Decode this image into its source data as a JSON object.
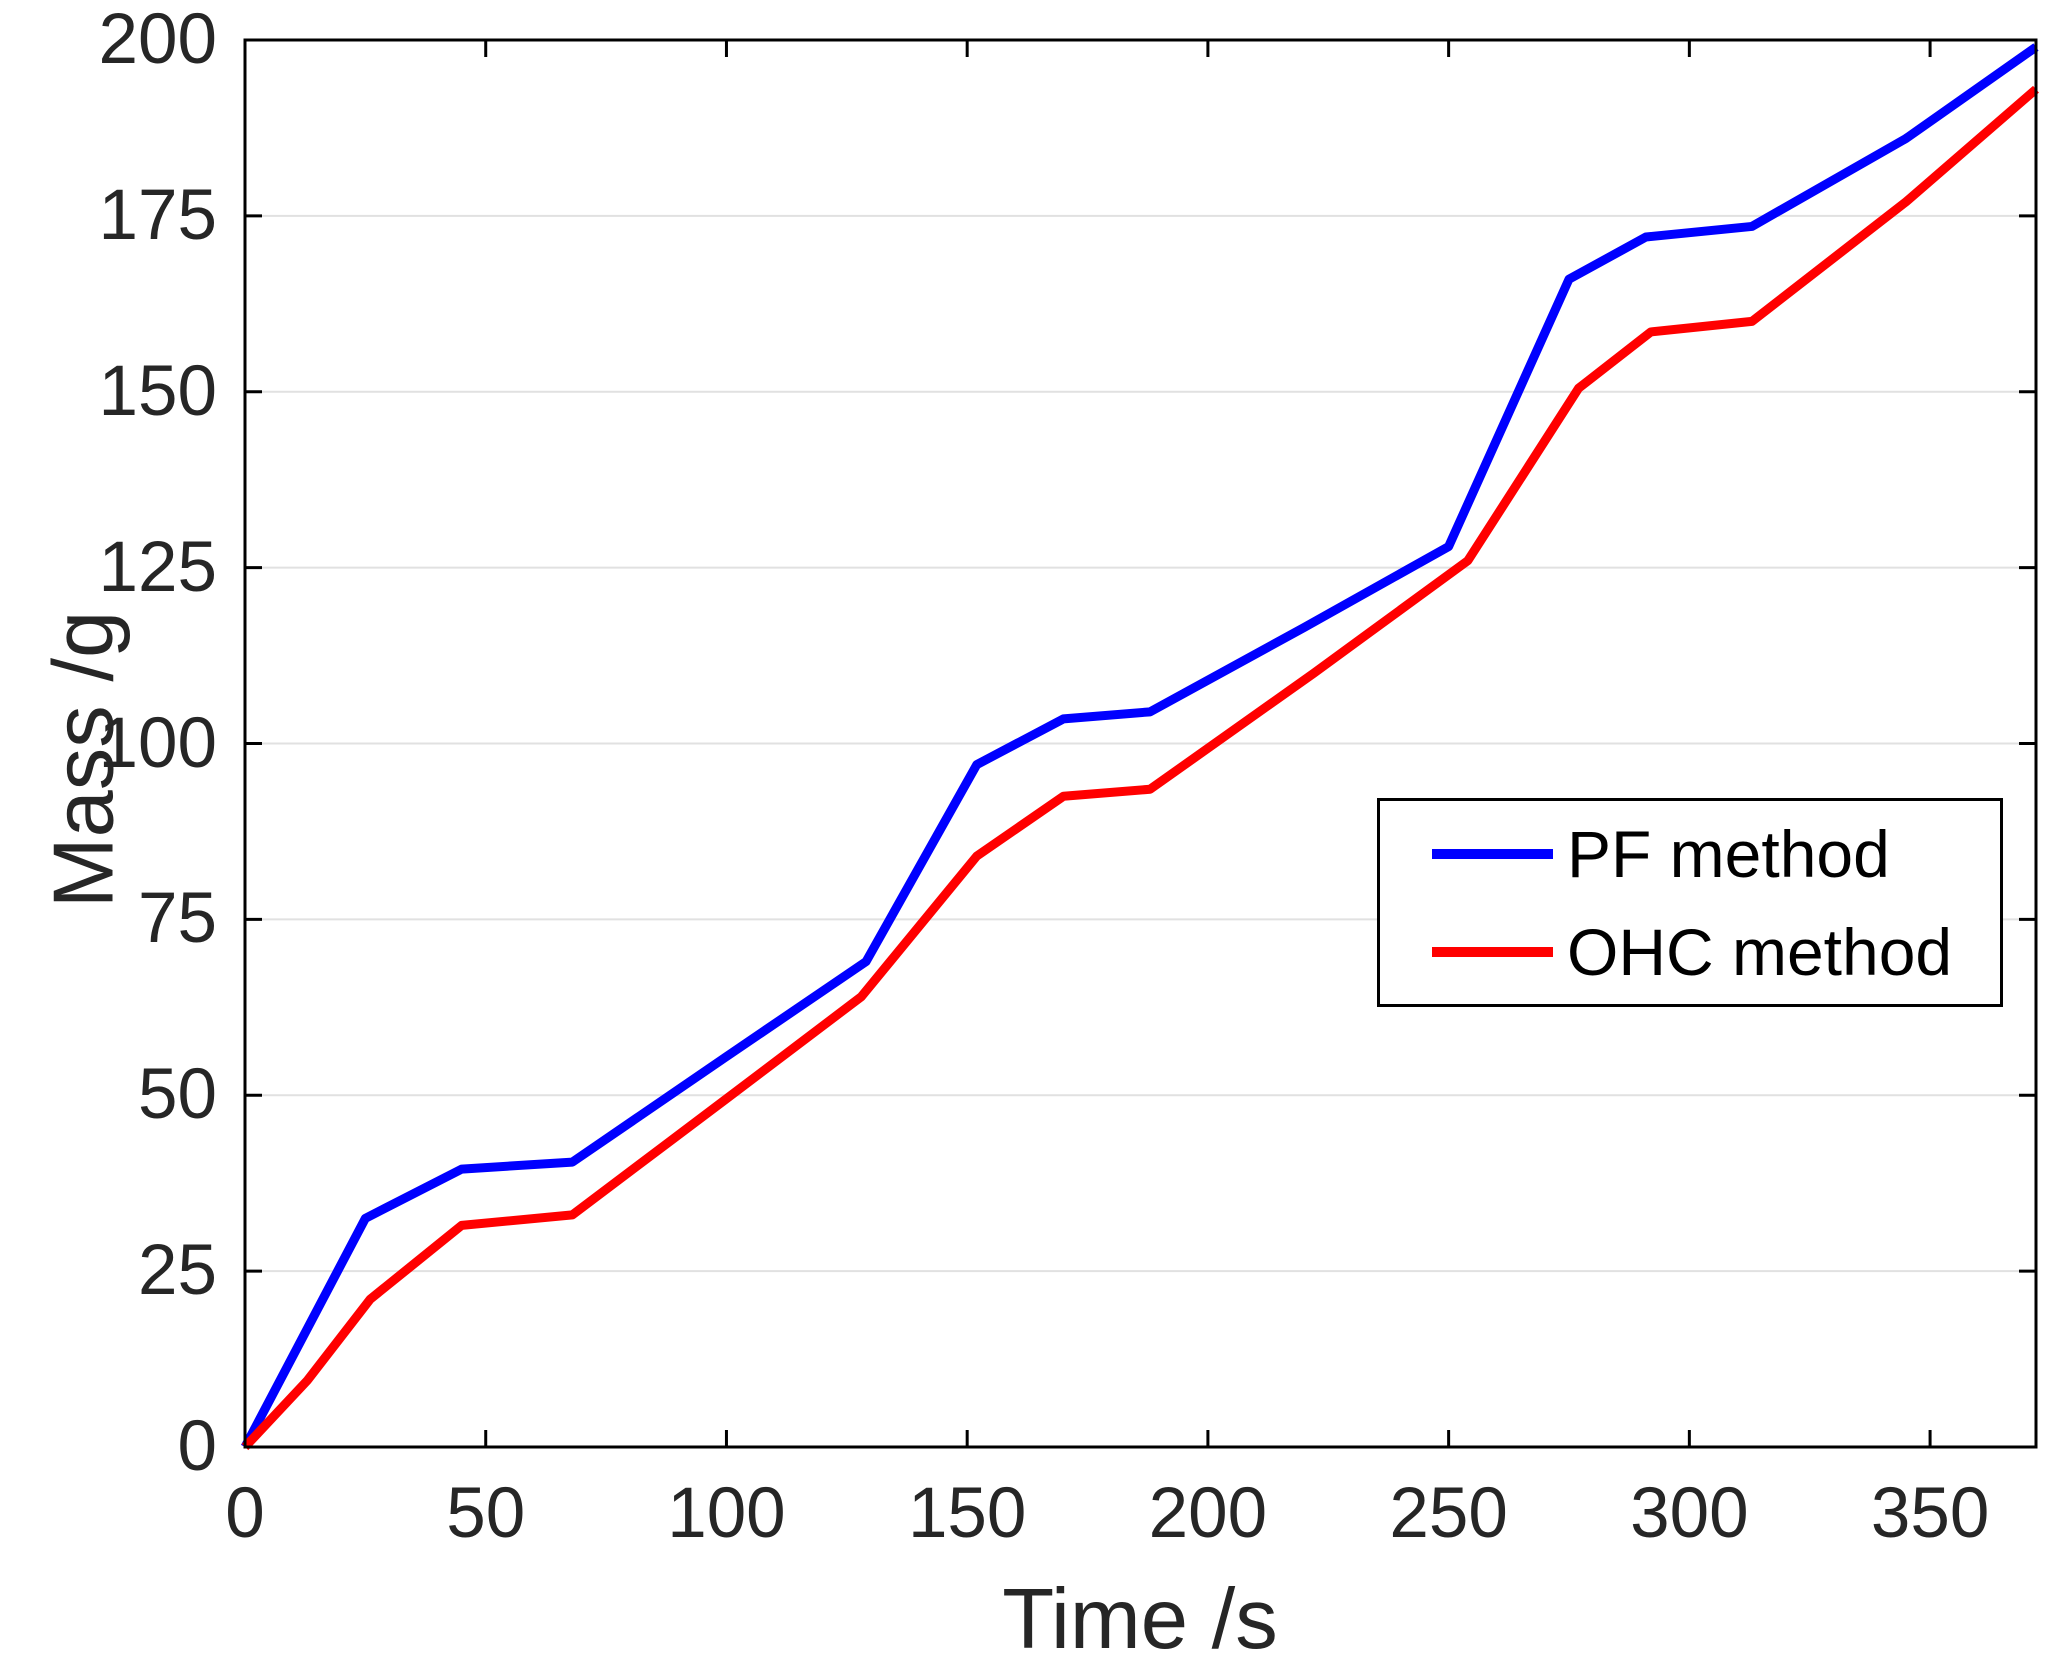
{
  "chart_data": {
    "type": "line",
    "title": "",
    "xlabel": "Time /s",
    "ylabel": "Mass /g",
    "xlim": [
      0,
      372
    ],
    "ylim": [
      0,
      200
    ],
    "xticks": [
      0,
      50,
      100,
      150,
      200,
      250,
      300,
      350
    ],
    "yticks": [
      0,
      25,
      50,
      75,
      100,
      125,
      150,
      175,
      200
    ],
    "grid": "horizontal-only",
    "gridline_color": "#E1E1E1",
    "axis_color": "#000000",
    "tick_label_color": "#262626",
    "legend_position": "middle-right",
    "series": [
      {
        "name": "PF method",
        "color": "#0000FF",
        "points": [
          [
            0,
            0
          ],
          [
            25,
            32.5
          ],
          [
            45,
            39.5
          ],
          [
            68,
            40.5
          ],
          [
            100,
            55.5
          ],
          [
            129,
            69
          ],
          [
            152,
            97
          ],
          [
            170,
            103.5
          ],
          [
            188,
            104.5
          ],
          [
            220,
            116.5
          ],
          [
            250,
            128
          ],
          [
            275,
            166
          ],
          [
            291,
            172
          ],
          [
            313,
            173.5
          ],
          [
            345,
            186
          ],
          [
            372,
            199
          ]
        ]
      },
      {
        "name": "OHC method",
        "color": "#FF0000",
        "points": [
          [
            0,
            0
          ],
          [
            13,
            9.5
          ],
          [
            26,
            21
          ],
          [
            45,
            31.5
          ],
          [
            68,
            33
          ],
          [
            100,
            49.5
          ],
          [
            128,
            64
          ],
          [
            152,
            84
          ],
          [
            170,
            92.5
          ],
          [
            188,
            93.5
          ],
          [
            222,
            110
          ],
          [
            254,
            126
          ],
          [
            277,
            150.5
          ],
          [
            292,
            158.5
          ],
          [
            313,
            160
          ],
          [
            345,
            177
          ],
          [
            372,
            193
          ]
        ]
      }
    ]
  }
}
